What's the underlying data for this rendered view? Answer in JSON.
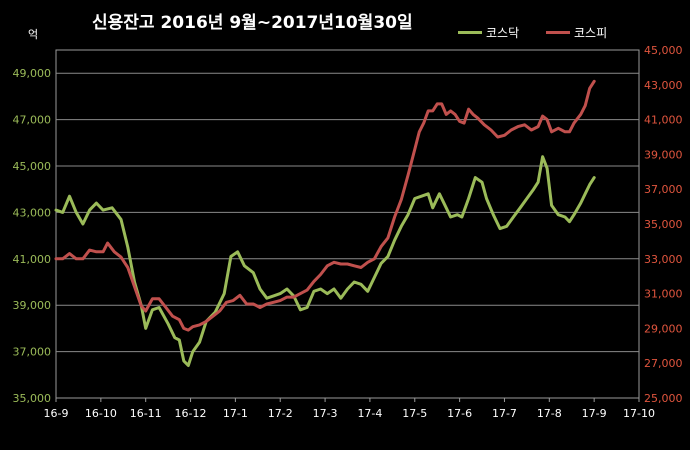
{
  "chart_data": {
    "type": "line",
    "title": "신용잔고  2016년 9월~2017년10월30일",
    "unit_label": "억",
    "x_tick_labels": [
      "16-9",
      "16-10",
      "16-11",
      "16-12",
      "17-1",
      "17-2",
      "17-3",
      "17-4",
      "17-5",
      "17-6",
      "17-7",
      "17-8",
      "17-9",
      "17-10"
    ],
    "y_left": {
      "min": 35000,
      "max": 50000,
      "ticks": [
        "35,000",
        "37,000",
        "39,000",
        "41,000",
        "43,000",
        "45,000",
        "47,000",
        "49,000"
      ]
    },
    "y_right": {
      "min": 25000,
      "max": 45000,
      "ticks": [
        "25,000",
        "27,000",
        "29,000",
        "31,000",
        "33,000",
        "35,000",
        "37,000",
        "39,000",
        "41,000",
        "43,000",
        "45,000"
      ]
    },
    "grid": true,
    "legend_position": "top-right",
    "series": [
      {
        "name": "코스닥",
        "axis": "left",
        "color": "#9BBB59",
        "points": [
          [
            0,
            43100
          ],
          [
            0.15,
            43000
          ],
          [
            0.3,
            43700
          ],
          [
            0.45,
            43000
          ],
          [
            0.6,
            42500
          ],
          [
            0.75,
            43100
          ],
          [
            0.9,
            43400
          ],
          [
            1.05,
            43100
          ],
          [
            1.25,
            43200
          ],
          [
            1.45,
            42700
          ],
          [
            1.6,
            41500
          ],
          [
            1.75,
            40000
          ],
          [
            1.9,
            39000
          ],
          [
            2.0,
            38000
          ],
          [
            2.15,
            38800
          ],
          [
            2.3,
            38900
          ],
          [
            2.5,
            38200
          ],
          [
            2.65,
            37600
          ],
          [
            2.75,
            37500
          ],
          [
            2.85,
            36600
          ],
          [
            2.95,
            36400
          ],
          [
            3.05,
            37000
          ],
          [
            3.2,
            37400
          ],
          [
            3.35,
            38300
          ],
          [
            3.55,
            38700
          ],
          [
            3.75,
            39500
          ],
          [
            3.9,
            41100
          ],
          [
            4.05,
            41300
          ],
          [
            4.2,
            40700
          ],
          [
            4.4,
            40400
          ],
          [
            4.55,
            39700
          ],
          [
            4.7,
            39300
          ],
          [
            4.85,
            39400
          ],
          [
            5.0,
            39500
          ],
          [
            5.15,
            39700
          ],
          [
            5.3,
            39400
          ],
          [
            5.45,
            38800
          ],
          [
            5.6,
            38900
          ],
          [
            5.75,
            39600
          ],
          [
            5.9,
            39700
          ],
          [
            6.05,
            39500
          ],
          [
            6.2,
            39700
          ],
          [
            6.35,
            39300
          ],
          [
            6.5,
            39700
          ],
          [
            6.65,
            40000
          ],
          [
            6.8,
            39900
          ],
          [
            6.95,
            39600
          ],
          [
            7.1,
            40200
          ],
          [
            7.25,
            40800
          ],
          [
            7.4,
            41100
          ],
          [
            7.55,
            41800
          ],
          [
            7.7,
            42400
          ],
          [
            7.85,
            42900
          ],
          [
            8.0,
            43600
          ],
          [
            8.15,
            43700
          ],
          [
            8.3,
            43800
          ],
          [
            8.4,
            43200
          ],
          [
            8.55,
            43800
          ],
          [
            8.7,
            43200
          ],
          [
            8.8,
            42800
          ],
          [
            8.95,
            42900
          ],
          [
            9.05,
            42800
          ],
          [
            9.2,
            43600
          ],
          [
            9.35,
            44500
          ],
          [
            9.5,
            44300
          ],
          [
            9.6,
            43600
          ],
          [
            9.75,
            42900
          ],
          [
            9.9,
            42300
          ],
          [
            10.05,
            42400
          ],
          [
            10.2,
            42800
          ],
          [
            10.35,
            43200
          ],
          [
            10.5,
            43600
          ],
          [
            10.65,
            44000
          ],
          [
            10.75,
            44300
          ],
          [
            10.85,
            45400
          ],
          [
            10.95,
            44900
          ],
          [
            11.05,
            43300
          ],
          [
            11.2,
            42900
          ],
          [
            11.35,
            42800
          ],
          [
            11.45,
            42600
          ],
          [
            11.55,
            42900
          ],
          [
            11.7,
            43400
          ],
          [
            11.8,
            43800
          ],
          [
            11.9,
            44200
          ],
          [
            12.0,
            44500
          ]
        ]
      },
      {
        "name": "코스피",
        "axis": "right",
        "color": "#C0504D",
        "points": [
          [
            0,
            33000
          ],
          [
            0.15,
            33000
          ],
          [
            0.3,
            33300
          ],
          [
            0.45,
            33000
          ],
          [
            0.6,
            33000
          ],
          [
            0.75,
            33500
          ],
          [
            0.9,
            33400
          ],
          [
            1.05,
            33400
          ],
          [
            1.15,
            33900
          ],
          [
            1.3,
            33400
          ],
          [
            1.45,
            33100
          ],
          [
            1.6,
            32500
          ],
          [
            1.75,
            31400
          ],
          [
            1.9,
            30300
          ],
          [
            2.0,
            30000
          ],
          [
            2.15,
            30700
          ],
          [
            2.3,
            30700
          ],
          [
            2.45,
            30200
          ],
          [
            2.6,
            29700
          ],
          [
            2.75,
            29500
          ],
          [
            2.85,
            29000
          ],
          [
            2.95,
            28900
          ],
          [
            3.05,
            29100
          ],
          [
            3.2,
            29200
          ],
          [
            3.35,
            29400
          ],
          [
            3.5,
            29700
          ],
          [
            3.65,
            30000
          ],
          [
            3.8,
            30500
          ],
          [
            3.95,
            30600
          ],
          [
            4.1,
            30900
          ],
          [
            4.25,
            30400
          ],
          [
            4.4,
            30400
          ],
          [
            4.55,
            30200
          ],
          [
            4.7,
            30400
          ],
          [
            4.85,
            30500
          ],
          [
            5.0,
            30600
          ],
          [
            5.15,
            30800
          ],
          [
            5.3,
            30800
          ],
          [
            5.45,
            31000
          ],
          [
            5.6,
            31200
          ],
          [
            5.75,
            31700
          ],
          [
            5.9,
            32100
          ],
          [
            6.05,
            32600
          ],
          [
            6.2,
            32800
          ],
          [
            6.35,
            32700
          ],
          [
            6.5,
            32700
          ],
          [
            6.65,
            32600
          ],
          [
            6.8,
            32500
          ],
          [
            6.95,
            32800
          ],
          [
            7.1,
            33000
          ],
          [
            7.25,
            33700
          ],
          [
            7.4,
            34200
          ],
          [
            7.55,
            35400
          ],
          [
            7.7,
            36400
          ],
          [
            7.85,
            37800
          ],
          [
            8.0,
            39300
          ],
          [
            8.1,
            40300
          ],
          [
            8.2,
            40800
          ],
          [
            8.3,
            41500
          ],
          [
            8.4,
            41500
          ],
          [
            8.5,
            41900
          ],
          [
            8.6,
            41900
          ],
          [
            8.7,
            41300
          ],
          [
            8.8,
            41500
          ],
          [
            8.9,
            41300
          ],
          [
            9.0,
            40900
          ],
          [
            9.1,
            40800
          ],
          [
            9.2,
            41600
          ],
          [
            9.3,
            41300
          ],
          [
            9.4,
            41100
          ],
          [
            9.55,
            40700
          ],
          [
            9.7,
            40400
          ],
          [
            9.85,
            40000
          ],
          [
            10.0,
            40100
          ],
          [
            10.15,
            40400
          ],
          [
            10.3,
            40600
          ],
          [
            10.45,
            40700
          ],
          [
            10.6,
            40400
          ],
          [
            10.75,
            40600
          ],
          [
            10.85,
            41200
          ],
          [
            10.95,
            41000
          ],
          [
            11.05,
            40300
          ],
          [
            11.2,
            40500
          ],
          [
            11.35,
            40300
          ],
          [
            11.45,
            40300
          ],
          [
            11.55,
            40800
          ],
          [
            11.7,
            41300
          ],
          [
            11.8,
            41800
          ],
          [
            11.9,
            42800
          ],
          [
            12.0,
            43200
          ]
        ]
      }
    ]
  }
}
